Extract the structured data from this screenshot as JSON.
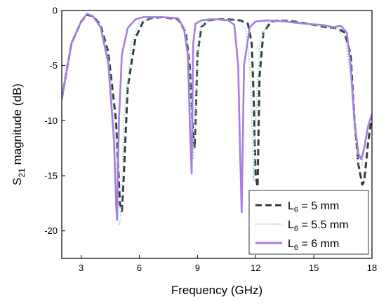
{
  "chart_data": {
    "type": "line",
    "title": "",
    "xlabel": "Frequency (GHz)",
    "ylabel_main": "S",
    "ylabel_sub": "21",
    "ylabel_rest": " magnitude (dB)",
    "xlim": [
      2,
      18
    ],
    "ylim": [
      -22.5,
      0
    ],
    "x_ticks": [
      3,
      6,
      9,
      12,
      15,
      18
    ],
    "y_ticks": [
      0,
      -5,
      -10,
      -15,
      -20
    ],
    "grid": false,
    "legend_position": "bottom-right",
    "series": [
      {
        "legend_main": "L",
        "legend_sub": "6",
        "legend_rest": " = 5 mm",
        "color": "#3a3a3a",
        "style": "dashed",
        "x": [
          2.0,
          2.5,
          3.0,
          3.3,
          3.6,
          4.0,
          4.4,
          4.8,
          5.0,
          5.1,
          5.2,
          5.4,
          5.8,
          6.2,
          6.6,
          7.2,
          8.0,
          8.4,
          8.6,
          8.75,
          8.85,
          8.9,
          9.0,
          9.2,
          9.6,
          10.0,
          10.6,
          11.2,
          11.6,
          11.8,
          11.9,
          12.0,
          12.1,
          12.2,
          12.4,
          12.8,
          13.2,
          14.0,
          15.0,
          15.6,
          16.2,
          16.6,
          16.9,
          17.1,
          17.3,
          17.5,
          17.6,
          17.8,
          18.0
        ],
        "y": [
          -8.0,
          -3.0,
          -1.0,
          -0.4,
          -0.5,
          -1.3,
          -3.8,
          -10.0,
          -17.5,
          -18.2,
          -15.0,
          -7.0,
          -2.5,
          -1.0,
          -0.7,
          -0.6,
          -0.8,
          -2.0,
          -5.0,
          -10.5,
          -12.5,
          -10.0,
          -4.0,
          -1.5,
          -0.9,
          -0.8,
          -0.8,
          -0.9,
          -1.2,
          -3.0,
          -8.0,
          -15.0,
          -16.0,
          -6.0,
          -2.0,
          -1.0,
          -0.9,
          -1.0,
          -1.3,
          -1.5,
          -1.6,
          -2.0,
          -4.0,
          -10.0,
          -14.0,
          -15.8,
          -15.5,
          -12.0,
          -9.5
        ]
      },
      {
        "legend_main": "L",
        "legend_sub": "6",
        "legend_rest": " = 5.5 mm",
        "color": "#8fd6d2",
        "style": "dotted",
        "x": [
          2.0,
          2.5,
          3.0,
          3.3,
          3.6,
          4.0,
          4.4,
          4.8,
          4.95,
          5.05,
          5.2,
          5.6,
          6.0,
          6.6,
          7.2,
          8.0,
          8.4,
          8.6,
          8.7,
          8.8,
          8.9,
          9.1,
          9.4,
          10.0,
          10.6,
          11.2,
          11.5,
          11.7,
          11.8,
          11.9,
          12.0,
          12.2,
          12.6,
          13.0,
          14.0,
          15.0,
          15.6,
          16.2,
          16.6,
          16.9,
          17.1,
          17.3,
          17.5,
          17.7,
          18.0
        ],
        "y": [
          -7.8,
          -2.8,
          -0.9,
          -0.35,
          -0.5,
          -1.4,
          -4.2,
          -12.0,
          -19.5,
          -19.0,
          -10.0,
          -3.0,
          -1.0,
          -0.7,
          -0.6,
          -0.8,
          -2.2,
          -5.5,
          -10.0,
          -13.5,
          -8.0,
          -2.0,
          -1.0,
          -0.8,
          -0.8,
          -1.0,
          -1.8,
          -5.0,
          -10.0,
          -15.5,
          -10.0,
          -3.0,
          -1.2,
          -0.9,
          -1.0,
          -1.3,
          -1.5,
          -1.6,
          -2.5,
          -6.0,
          -11.0,
          -14.0,
          -14.0,
          -11.0,
          -9.3
        ]
      },
      {
        "legend_main": "L",
        "legend_sub": "6",
        "legend_rest": " = 6 mm",
        "color": "#a77de0",
        "style": "solid",
        "x": [
          2.0,
          2.5,
          3.0,
          3.3,
          3.6,
          4.0,
          4.4,
          4.7,
          4.8,
          4.85,
          4.95,
          5.1,
          5.4,
          5.8,
          6.2,
          6.6,
          7.2,
          8.0,
          8.3,
          8.5,
          8.62,
          8.7,
          8.78,
          8.9,
          9.2,
          9.6,
          10.0,
          10.6,
          10.9,
          11.1,
          11.2,
          11.28,
          11.4,
          11.7,
          12.0,
          12.6,
          13.5,
          14.5,
          15.4,
          16.0,
          16.4,
          16.7,
          16.9,
          17.1,
          17.3,
          17.45,
          17.6,
          17.8,
          18.0
        ],
        "y": [
          -8.1,
          -3.0,
          -1.0,
          -0.3,
          -0.5,
          -1.5,
          -4.8,
          -12.0,
          -17.5,
          -19.0,
          -10.0,
          -4.0,
          -1.6,
          -0.8,
          -0.6,
          -0.6,
          -0.6,
          -0.7,
          -1.6,
          -4.0,
          -11.0,
          -14.8,
          -3.0,
          -1.2,
          -0.9,
          -0.8,
          -0.8,
          -0.9,
          -1.3,
          -5.0,
          -13.0,
          -18.3,
          -5.0,
          -1.5,
          -1.0,
          -0.9,
          -1.0,
          -1.2,
          -1.3,
          -1.5,
          -1.4,
          -2.0,
          -5.0,
          -10.0,
          -13.0,
          -13.5,
          -12.5,
          -10.5,
          -9.4
        ]
      }
    ]
  }
}
